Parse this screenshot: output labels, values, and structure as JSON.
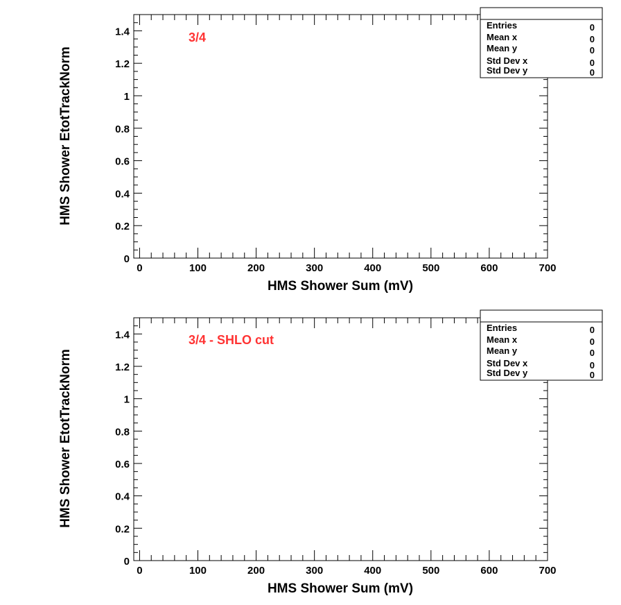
{
  "colors": {
    "annotation": "#ff3333",
    "frame": "#000000",
    "background": "#ffffff"
  },
  "chart_data": [
    {
      "type": "scatter",
      "annotation": "3/4",
      "xlabel": "HMS Shower Sum (mV)",
      "ylabel": "HMS Shower EtotTrackNorm",
      "xlim": [
        -10,
        700
      ],
      "ylim": [
        0,
        1.5
      ],
      "x_ticks": [
        "0",
        "100",
        "200",
        "300",
        "400",
        "500",
        "600",
        "700"
      ],
      "y_ticks": [
        "0",
        "0.2",
        "0.4",
        "0.6",
        "0.8",
        "1",
        "1.2",
        "1.4"
      ],
      "points": [],
      "stats": [
        {
          "label": "Entries",
          "value": "0"
        },
        {
          "label": "Mean x",
          "value": "0"
        },
        {
          "label": "Mean y",
          "value": "0"
        },
        {
          "label": "Std Dev x",
          "value": "0"
        },
        {
          "label": "Std Dev y",
          "value": "0"
        }
      ]
    },
    {
      "type": "scatter",
      "annotation": "3/4 - SHLO cut",
      "xlabel": "HMS Shower Sum (mV)",
      "ylabel": "HMS Shower EtotTrackNorm",
      "xlim": [
        -10,
        700
      ],
      "ylim": [
        0,
        1.5
      ],
      "x_ticks": [
        "0",
        "100",
        "200",
        "300",
        "400",
        "500",
        "600",
        "700"
      ],
      "y_ticks": [
        "0",
        "0.2",
        "0.4",
        "0.6",
        "0.8",
        "1",
        "1.2",
        "1.4"
      ],
      "points": [],
      "stats": [
        {
          "label": "Entries",
          "value": "0"
        },
        {
          "label": "Mean x",
          "value": "0"
        },
        {
          "label": "Mean y",
          "value": "0"
        },
        {
          "label": "Std Dev x",
          "value": "0"
        },
        {
          "label": "Std Dev y",
          "value": "0"
        }
      ]
    }
  ]
}
